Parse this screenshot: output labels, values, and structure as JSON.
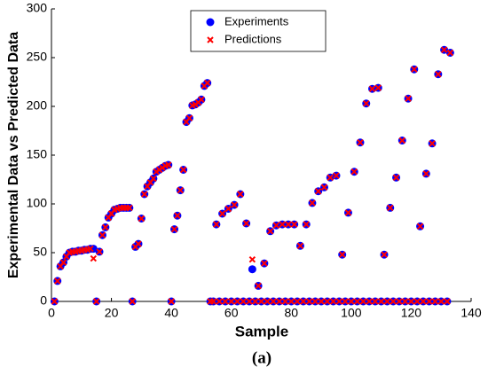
{
  "chart_data": {
    "type": "scatter",
    "caption": "(a)",
    "xlabel": "Sample",
    "ylabel": "Experimental Data vs Predicted Data",
    "xlim": [
      0,
      140
    ],
    "xticks": [
      0,
      20,
      40,
      60,
      80,
      100,
      120,
      140
    ],
    "ylim": [
      0,
      300
    ],
    "yticks": [
      0,
      50,
      100,
      150,
      200,
      250,
      300
    ],
    "legend": "top",
    "x": [
      1,
      2,
      3,
      4,
      5,
      6,
      7,
      8,
      9,
      10,
      11,
      12,
      13,
      14,
      15,
      16,
      17,
      18,
      19,
      20,
      21,
      22,
      23,
      24,
      25,
      26,
      27,
      28,
      29,
      30,
      31,
      32,
      33,
      34,
      35,
      36,
      37,
      38,
      39,
      40,
      41,
      42,
      43,
      44,
      45,
      46,
      47,
      48,
      49,
      50,
      51,
      52,
      53,
      54,
      55,
      56,
      57,
      58,
      59,
      60,
      61,
      62,
      63,
      64,
      65,
      66,
      67,
      68,
      69,
      70,
      71,
      72,
      73,
      74,
      75,
      76,
      77,
      78,
      79,
      80,
      81,
      82,
      83,
      84,
      85,
      86,
      87,
      88,
      89,
      90,
      91,
      92,
      93,
      94,
      95,
      96,
      97,
      98,
      99,
      100,
      101,
      102,
      103,
      104,
      105,
      106,
      107,
      108,
      109,
      110,
      111,
      112,
      113,
      114,
      115,
      116,
      117,
      118,
      119,
      120,
      121,
      122,
      123,
      124,
      125,
      126,
      127,
      128,
      129,
      130,
      131,
      132,
      133
    ],
    "series": [
      {
        "name": "Experiments",
        "color": "#0000ff",
        "marker": "circle",
        "values": [
          0,
          21,
          36,
          40,
          46,
          50,
          51,
          51,
          52,
          52,
          53,
          53,
          54,
          54,
          0,
          51,
          68,
          76,
          86,
          90,
          94,
          95,
          96,
          96,
          96,
          96,
          0,
          56,
          59,
          85,
          110,
          118,
          122,
          126,
          133,
          135,
          137,
          139,
          140,
          0,
          74,
          88,
          114,
          135,
          184,
          188,
          201,
          202,
          204,
          207,
          221,
          224,
          0,
          0,
          79,
          0,
          90,
          0,
          95,
          0,
          99,
          0,
          110,
          0,
          80,
          0,
          33,
          0,
          16,
          0,
          39,
          0,
          72,
          0,
          78,
          0,
          79,
          0,
          79,
          0,
          79,
          0,
          57,
          0,
          79,
          0,
          101,
          0,
          113,
          0,
          117,
          0,
          127,
          0,
          129,
          0,
          48,
          0,
          91,
          0,
          133,
          0,
          163,
          0,
          203,
          0,
          218,
          0,
          219,
          0,
          48,
          0,
          96,
          0,
          127,
          0,
          165,
          0,
          208,
          0,
          238,
          0,
          77,
          0,
          131,
          0,
          162,
          0,
          233,
          0,
          258,
          0,
          255
        ]
      },
      {
        "name": "Predictions",
        "color": "#ff0000",
        "marker": "x",
        "values": [
          0,
          21,
          36,
          40,
          46,
          50,
          51,
          51,
          52,
          52,
          53,
          53,
          54,
          44,
          0,
          51,
          68,
          76,
          86,
          90,
          94,
          95,
          96,
          96,
          96,
          96,
          0,
          56,
          59,
          85,
          110,
          118,
          122,
          126,
          133,
          135,
          137,
          139,
          140,
          0,
          74,
          88,
          114,
          135,
          184,
          188,
          201,
          202,
          204,
          207,
          221,
          224,
          0,
          0,
          79,
          0,
          90,
          0,
          95,
          0,
          99,
          0,
          110,
          0,
          80,
          0,
          43,
          0,
          16,
          0,
          39,
          0,
          72,
          0,
          78,
          0,
          79,
          0,
          79,
          0,
          79,
          0,
          57,
          0,
          79,
          0,
          101,
          0,
          113,
          0,
          117,
          0,
          127,
          0,
          129,
          0,
          48,
          0,
          91,
          0,
          133,
          0,
          163,
          0,
          203,
          0,
          218,
          0,
          219,
          0,
          48,
          0,
          96,
          0,
          127,
          0,
          165,
          0,
          208,
          0,
          238,
          0,
          77,
          0,
          131,
          0,
          162,
          0,
          233,
          0,
          258,
          0,
          255
        ]
      }
    ]
  }
}
